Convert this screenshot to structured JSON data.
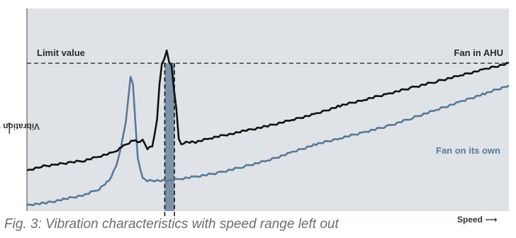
{
  "caption": "Fig. 3: Vibration characteristics with speed range left out",
  "chart_data": {
    "type": "line",
    "xlabel": "Speed",
    "ylabel": "Vibration velocity",
    "xlim": [
      0,
      100
    ],
    "ylim": [
      0,
      100
    ],
    "grid": false,
    "colors": {
      "background": "#dfe3e8",
      "fan_in_ahu": "#111111",
      "fan_on_its_own": "#5b7895",
      "band": "#7d92a8"
    },
    "limit": {
      "label": "Limit value",
      "value": 73
    },
    "skipped_range": {
      "x": [
        28.6,
        30.6
      ]
    },
    "annotations": [
      {
        "text": "Fan in AHU",
        "series": "Fan in AHU"
      },
      {
        "text": "Fan on its own",
        "series": "Fan on its own"
      }
    ],
    "series": [
      {
        "name": "Fan in AHU",
        "x": [
          0,
          3,
          6,
          9,
          12,
          15,
          18,
          20,
          22,
          23,
          24,
          25,
          26,
          27,
          27.5,
          28,
          28.5,
          29,
          29.5,
          30,
          30.5,
          31,
          31.5,
          32,
          33,
          35,
          38,
          42,
          46,
          50,
          55,
          60,
          65,
          70,
          75,
          80,
          85,
          90,
          95,
          100
        ],
        "values": [
          20,
          22,
          23,
          24,
          25,
          27,
          29,
          32,
          35,
          34,
          35,
          31,
          32,
          45,
          62,
          73,
          75,
          79,
          74,
          72,
          60,
          50,
          36,
          33,
          34,
          34,
          36,
          38,
          40,
          42,
          45,
          48,
          52,
          55,
          58,
          61,
          64,
          67,
          70,
          73
        ]
      },
      {
        "name": "Fan on its own",
        "x": [
          0,
          4,
          8,
          12,
          15,
          17,
          18.5,
          19.5,
          20.5,
          21,
          21.5,
          22,
          22.5,
          23,
          24,
          25,
          26,
          27,
          29,
          32,
          35,
          40,
          45,
          50,
          55,
          60,
          65,
          70,
          75,
          80,
          85,
          90,
          95,
          100
        ],
        "values": [
          3,
          4,
          6,
          8,
          11,
          15,
          22,
          31,
          44,
          55,
          66,
          63,
          44,
          26,
          16,
          15,
          15,
          15,
          15,
          16,
          17,
          19,
          22,
          25,
          29,
          33,
          36,
          39,
          42,
          46,
          50,
          54,
          58,
          62
        ]
      }
    ]
  }
}
